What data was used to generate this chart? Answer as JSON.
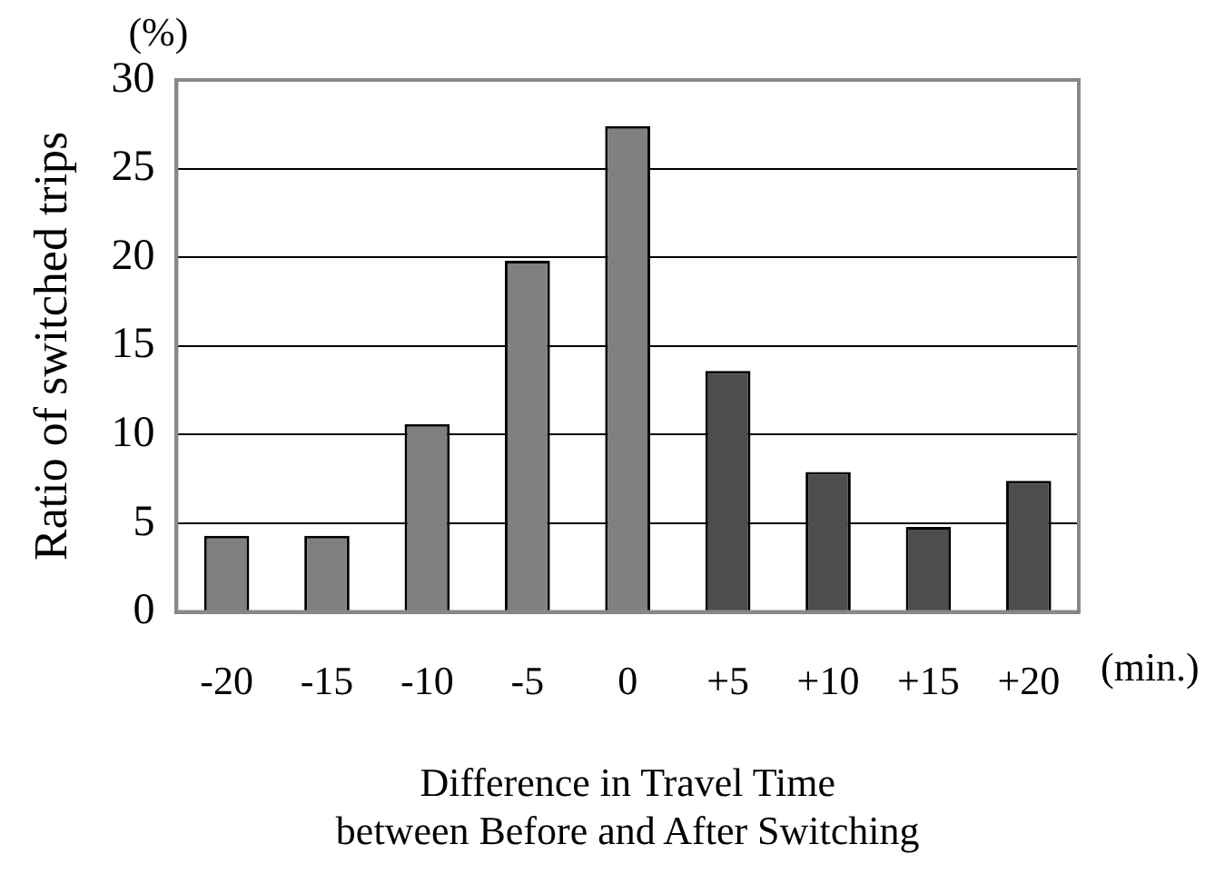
{
  "chart_data": {
    "type": "bar",
    "categories": [
      "-20",
      "-15",
      "-10",
      "-5",
      "0",
      "+5",
      "+10",
      "+15",
      "+20"
    ],
    "values": [
      4.3,
      4.3,
      10.6,
      19.8,
      27.4,
      13.6,
      7.9,
      4.8,
      7.4
    ],
    "colors": [
      "#808080",
      "#808080",
      "#808080",
      "#808080",
      "#808080",
      "#4d4d4d",
      "#4d4d4d",
      "#4d4d4d",
      "#4d4d4d"
    ],
    "xlabel": "Difference in Travel Time\nbetween Before and After Switching",
    "ylabel": "Ratio of switched trips",
    "ylim": [
      0,
      30
    ],
    "yticks": [
      0,
      5,
      10,
      15,
      20,
      25,
      30
    ],
    "grid": "y",
    "annotations": [
      "(%)",
      "(min.)"
    ]
  }
}
